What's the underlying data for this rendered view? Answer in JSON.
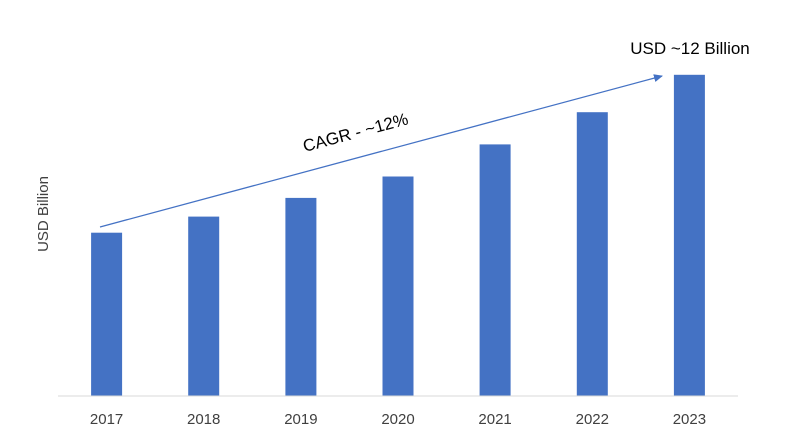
{
  "chart_data": {
    "type": "bar",
    "categories": [
      "2017",
      "2018",
      "2019",
      "2020",
      "2021",
      "2022",
      "2023"
    ],
    "values": [
      6.1,
      6.7,
      7.4,
      8.2,
      9.4,
      10.6,
      12.0
    ],
    "ylabel": "USD Billion",
    "xlabel": "",
    "ylim": [
      0,
      13
    ],
    "grid": false,
    "bar_color": "#4472C4",
    "arrow_color": "#4472C4",
    "annotations": {
      "cagr": "CAGR - ~12%",
      "end_value": "USD ~12 Billion"
    }
  }
}
